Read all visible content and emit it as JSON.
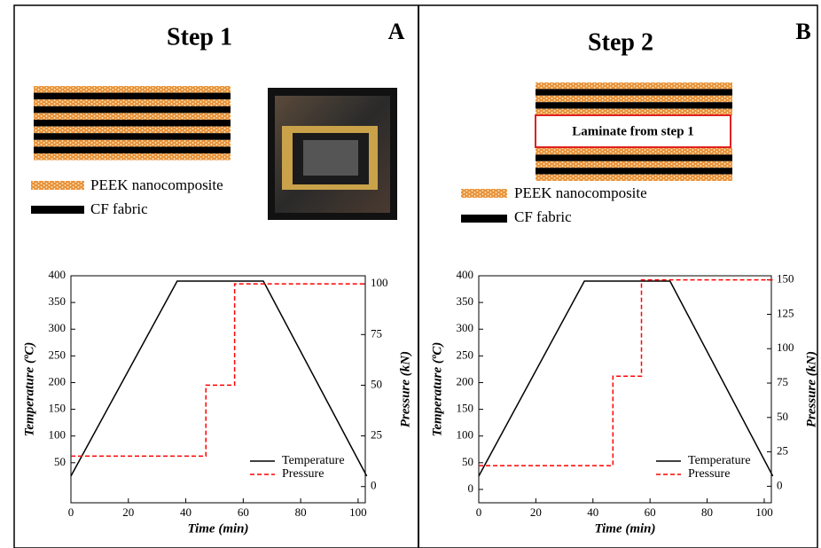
{
  "panels": [
    {
      "label": "A",
      "title": "Step 1",
      "legend": [
        "PEEK nanocomposite",
        "CF fabric"
      ]
    },
    {
      "label": "B",
      "title": "Step 2",
      "laminate_label": "Laminate from step 1",
      "legend": [
        "PEEK nanocomposite",
        "CF fabric"
      ]
    }
  ],
  "chart_data": [
    {
      "type": "line",
      "xlabel": "Time (min)",
      "ylabel": "Temperature (ºC)",
      "y2label": "Pressure (kN)",
      "xlim": [
        0,
        102.5
      ],
      "xticks": [
        0,
        20,
        40,
        60,
        80,
        100
      ],
      "ylim": [
        -25,
        400
      ],
      "yticks": [
        50,
        100,
        150,
        200,
        250,
        300,
        350,
        400
      ],
      "y2lim": [
        -8,
        104
      ],
      "y2ticks": [
        0,
        25,
        50,
        75,
        100
      ],
      "legend": "lower right",
      "series": [
        {
          "name": "Temperature",
          "color": "#000000",
          "style": "solid",
          "x": [
            0,
            37,
            67,
            103
          ],
          "values": [
            25,
            390,
            390,
            25
          ]
        },
        {
          "name": "Pressure",
          "color": "#ff0000",
          "style": "dashed",
          "axis": "y2",
          "x": [
            0,
            47,
            47,
            57,
            57,
            103
          ],
          "values": [
            15,
            15,
            50,
            50,
            100,
            100
          ]
        }
      ]
    },
    {
      "type": "line",
      "xlabel": "Time (min)",
      "ylabel": "Temperature (ºC)",
      "y2label": "Pressure (kN)",
      "xlim": [
        0,
        102.5
      ],
      "xticks": [
        0,
        20,
        40,
        60,
        80,
        100
      ],
      "ylim": [
        -25,
        400
      ],
      "yticks": [
        0,
        50,
        100,
        150,
        200,
        250,
        300,
        350,
        400
      ],
      "y2lim": [
        -12,
        153
      ],
      "y2ticks": [
        0,
        25,
        50,
        75,
        100,
        125,
        150
      ],
      "legend": "lower right",
      "series": [
        {
          "name": "Temperature",
          "color": "#000000",
          "style": "solid",
          "x": [
            0,
            37,
            67,
            103
          ],
          "values": [
            25,
            390,
            390,
            25
          ]
        },
        {
          "name": "Pressure",
          "color": "#ff0000",
          "style": "dashed",
          "axis": "y2",
          "x": [
            0,
            47,
            47,
            57,
            57,
            103
          ],
          "values": [
            15,
            15,
            80,
            80,
            150,
            150
          ]
        }
      ]
    }
  ]
}
